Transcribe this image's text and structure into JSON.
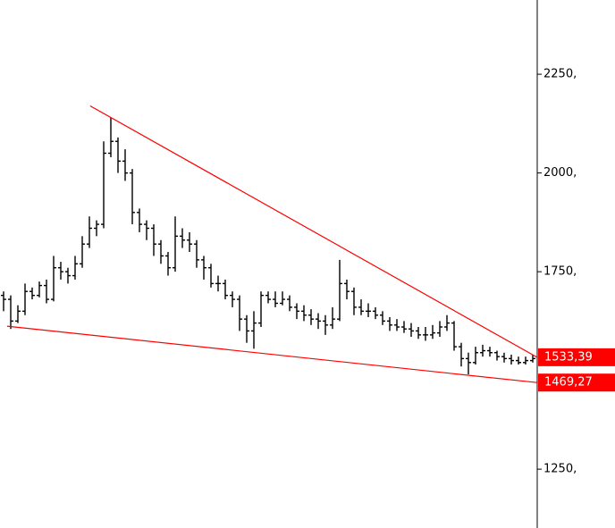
{
  "chart_data": {
    "type": "ohlc",
    "color": "#000000",
    "ylim": [
      1101,
      2438
    ],
    "yticks": [
      {
        "value": 1250,
        "label": "1250,"
      },
      {
        "value": 1750,
        "label": "1750,"
      },
      {
        "value": 2000,
        "label": "2000,"
      },
      {
        "value": 2250,
        "label": "2250,"
      }
    ],
    "open": [
      1690,
      1680,
      1625,
      1650,
      1700,
      1690,
      1715,
      1680,
      1760,
      1750,
      1740,
      1770,
      1820,
      1860,
      1870,
      2050,
      2080,
      2030,
      2000,
      1900,
      1870,
      1860,
      1820,
      1790,
      1760,
      1840,
      1830,
      1820,
      1780,
      1760,
      1720,
      1720,
      1690,
      1680,
      1630,
      1600,
      1620,
      1690,
      1680,
      1670,
      1680,
      1660,
      1650,
      1640,
      1630,
      1625,
      1615,
      1630,
      1720,
      1700,
      1660,
      1650,
      1650,
      1640,
      1625,
      1615,
      1610,
      1605,
      1600,
      1590,
      1590,
      1595,
      1610,
      1620,
      1560,
      1530,
      1520,
      1545,
      1550,
      1545,
      1535,
      1530,
      1525,
      1520,
      1525
    ],
    "high": [
      1700,
      1690,
      1665,
      1720,
      1710,
      1725,
      1730,
      1790,
      1775,
      1760,
      1790,
      1840,
      1890,
      1880,
      2080,
      2140,
      2090,
      2060,
      2010,
      1910,
      1880,
      1870,
      1830,
      1800,
      1890,
      1860,
      1850,
      1830,
      1790,
      1770,
      1740,
      1730,
      1700,
      1690,
      1640,
      1650,
      1700,
      1700,
      1700,
      1700,
      1690,
      1670,
      1665,
      1655,
      1645,
      1640,
      1660,
      1780,
      1730,
      1710,
      1680,
      1670,
      1660,
      1650,
      1635,
      1630,
      1625,
      1620,
      1610,
      1610,
      1615,
      1625,
      1640,
      1625,
      1570,
      1545,
      1560,
      1565,
      1560,
      1550,
      1545,
      1540,
      1535,
      1535,
      1540
    ],
    "low": [
      1650,
      1605,
      1620,
      1640,
      1680,
      1685,
      1670,
      1675,
      1730,
      1720,
      1730,
      1760,
      1810,
      1840,
      1860,
      2040,
      2000,
      1980,
      1870,
      1850,
      1830,
      1790,
      1770,
      1740,
      1750,
      1810,
      1800,
      1760,
      1730,
      1710,
      1700,
      1680,
      1660,
      1600,
      1570,
      1555,
      1610,
      1670,
      1660,
      1665,
      1650,
      1630,
      1625,
      1615,
      1605,
      1590,
      1605,
      1625,
      1680,
      1640,
      1640,
      1635,
      1630,
      1615,
      1600,
      1600,
      1595,
      1585,
      1580,
      1575,
      1580,
      1585,
      1600,
      1550,
      1510,
      1490,
      1515,
      1535,
      1535,
      1525,
      1520,
      1515,
      1515,
      1515,
      1520
    ],
    "close": [
      1680,
      1625,
      1650,
      1700,
      1690,
      1715,
      1680,
      1760,
      1750,
      1740,
      1770,
      1820,
      1860,
      1870,
      2050,
      2080,
      2030,
      2000,
      1900,
      1870,
      1860,
      1820,
      1790,
      1760,
      1840,
      1830,
      1820,
      1780,
      1760,
      1720,
      1720,
      1690,
      1680,
      1630,
      1600,
      1620,
      1690,
      1680,
      1670,
      1680,
      1660,
      1650,
      1640,
      1630,
      1625,
      1615,
      1630,
      1720,
      1700,
      1660,
      1650,
      1650,
      1640,
      1625,
      1615,
      1610,
      1605,
      1600,
      1590,
      1590,
      1595,
      1610,
      1620,
      1560,
      1530,
      1520,
      1545,
      1550,
      1545,
      1535,
      1530,
      1525,
      1520,
      1525,
      1530
    ],
    "trendlines": [
      {
        "color": "#ff0000",
        "x": [
          12.1,
          74.6
        ],
        "values": [
          2170,
          1533.39
        ],
        "value_labels": [
          null,
          "1533,39"
        ]
      },
      {
        "color": "#ff0000",
        "x": [
          0.5,
          74.6
        ],
        "values": [
          1612,
          1469.27
        ],
        "value_labels": [
          null,
          "1469,27"
        ]
      }
    ]
  }
}
